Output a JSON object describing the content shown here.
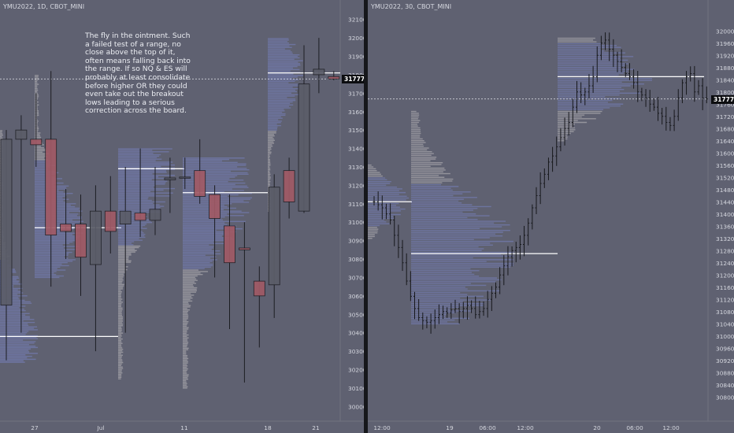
{
  "chart_data": [
    {
      "type": "candlestick",
      "symbol_label": "YMU2022, 1D, CBOT_MINI",
      "ylim": [
        29950,
        32150
      ],
      "y_ticks": [
        30000,
        30100,
        30200,
        30300,
        30400,
        30500,
        30600,
        30700,
        30800,
        30900,
        31000,
        31100,
        31200,
        31300,
        31400,
        31500,
        31600,
        31700,
        31800,
        31900,
        32000,
        32100
      ],
      "x_tick_labels": [
        "27",
        "Jul",
        "11",
        "18",
        "21"
      ],
      "last_price_label": "31777",
      "last_price": 31777,
      "annotation": "The fly in the ointment. Such a failed test of a range, no close above the top of it, often means falling back into the range. If so NQ & ES will probably at least consolidate before higher OR they could even take out the breakout lows leading to a serious correction across the board.",
      "candles": [
        {
          "o": 30550,
          "h": 31500,
          "l": 30250,
          "c": 31450
        },
        {
          "o": 31450,
          "h": 31580,
          "l": 30400,
          "c": 31500
        },
        {
          "o": 31450,
          "h": 31700,
          "l": 31300,
          "c": 31420
        },
        {
          "o": 31450,
          "h": 31820,
          "l": 30650,
          "c": 30930
        },
        {
          "o": 30990,
          "h": 31180,
          "l": 30800,
          "c": 30950
        },
        {
          "o": 30990,
          "h": 31150,
          "l": 30600,
          "c": 30810
        },
        {
          "o": 30770,
          "h": 31200,
          "l": 30300,
          "c": 31060
        },
        {
          "o": 31060,
          "h": 31250,
          "l": 30830,
          "c": 30950
        },
        {
          "o": 30990,
          "h": 31300,
          "l": 30400,
          "c": 31060
        },
        {
          "o": 31050,
          "h": 31400,
          "l": 30920,
          "c": 31010
        },
        {
          "o": 31010,
          "h": 31300,
          "l": 30930,
          "c": 31070
        },
        {
          "o": 31230,
          "h": 31350,
          "l": 31050,
          "c": 31240
        },
        {
          "o": 31240,
          "h": 31350,
          "l": 31180,
          "c": 31245
        },
        {
          "o": 31280,
          "h": 31450,
          "l": 31100,
          "c": 31140
        },
        {
          "o": 31150,
          "h": 31200,
          "l": 30700,
          "c": 31020
        },
        {
          "o": 30980,
          "h": 31150,
          "l": 30420,
          "c": 30780
        },
        {
          "o": 30860,
          "h": 31000,
          "l": 30130,
          "c": 30850
        },
        {
          "o": 30680,
          "h": 30760,
          "l": 30320,
          "c": 30600
        },
        {
          "o": 30660,
          "h": 31260,
          "l": 30480,
          "c": 31190
        },
        {
          "o": 31280,
          "h": 31350,
          "l": 31020,
          "c": 31110
        },
        {
          "o": 31060,
          "h": 31960,
          "l": 31050,
          "c": 31750
        },
        {
          "o": 31800,
          "h": 32000,
          "l": 31700,
          "c": 31830
        },
        {
          "o": 31790,
          "h": 31820,
          "l": 31770,
          "c": 31777
        }
      ],
      "profile_poc_levels": [
        30380,
        30970,
        31290,
        31160,
        31810
      ]
    },
    {
      "type": "candlestick",
      "symbol_label": "YMU2022, 30, CBOT_MINI",
      "ylim": [
        30780,
        32060
      ],
      "y_ticks": [
        30800,
        30840,
        30880,
        30920,
        30960,
        31000,
        31040,
        31080,
        31120,
        31160,
        31200,
        31240,
        31280,
        31320,
        31360,
        31400,
        31440,
        31480,
        31520,
        31560,
        31600,
        31640,
        31680,
        31720,
        31760,
        31800,
        31840,
        31880,
        31920,
        31960,
        32000
      ],
      "x_tick_labels": [
        "12:00",
        "19",
        "06:00",
        "12:00",
        "20",
        "06:00",
        "12:00"
      ],
      "last_price_label": "31777",
      "last_price": 31777,
      "candle_closes": [
        31440,
        31430,
        31420,
        31400,
        31380,
        31330,
        31290,
        31240,
        31180,
        31130,
        31090,
        31060,
        31050,
        31045,
        31050,
        31060,
        31070,
        31080,
        31075,
        31085,
        31090,
        31080,
        31090,
        31100,
        31090,
        31070,
        31080,
        31090,
        31120,
        31140,
        31160,
        31200,
        31230,
        31260,
        31280,
        31290,
        31300,
        31330,
        31370,
        31420,
        31460,
        31500,
        31530,
        31570,
        31590,
        31620,
        31650,
        31680,
        31700,
        31750,
        31800,
        31790,
        31800,
        31820,
        31850,
        31920,
        31960,
        31970,
        31940,
        31920,
        31900,
        31880,
        31860,
        31850,
        31830,
        31800,
        31790,
        31780,
        31760,
        31750,
        31730,
        31720,
        31700,
        31690,
        31720,
        31780,
        31830,
        31850,
        31860,
        31800,
        31820,
        31780,
        31777
      ],
      "profile_poc_levels": [
        31440,
        31270,
        31850
      ]
    }
  ]
}
